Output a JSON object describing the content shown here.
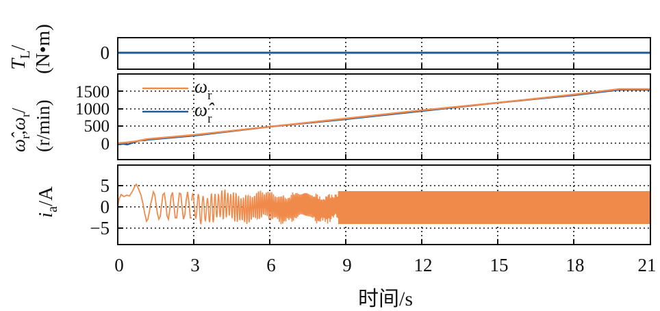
{
  "chart_data": [
    {
      "type": "line",
      "panel": "load-torque",
      "ylabel": "T_L/(N•m)",
      "yticks": [
        "0"
      ],
      "ylim": [
        -1,
        1
      ],
      "xlim": [
        0,
        21
      ],
      "grid": true,
      "series": [
        {
          "name": "T_L",
          "color": "#1f5a96",
          "x": [
            0,
            21
          ],
          "values": [
            0,
            0
          ]
        }
      ]
    },
    {
      "type": "line",
      "panel": "speed",
      "ylabel": "ω̂r,ωr/(r/min)",
      "yticks": [
        "0",
        "500",
        "1000",
        "1500"
      ],
      "ylim": [
        -150,
        2000
      ],
      "xlim": [
        0,
        21
      ],
      "grid": true,
      "legend": [
        {
          "label": "ω",
          "sub": "r",
          "color": "#f08a4b"
        },
        {
          "label": "ω̂",
          "sub": "r",
          "color": "#1f5a96"
        }
      ],
      "series": [
        {
          "name": "ωr",
          "color": "#f08a4b",
          "x": [
            0,
            0.5,
            1,
            3,
            6,
            9,
            12,
            15,
            18,
            19.8,
            21
          ],
          "values": [
            0,
            15,
            60,
            230,
            475,
            710,
            940,
            1170,
            1400,
            1550,
            1550
          ]
        },
        {
          "name": "ω̂r",
          "color": "#1f5a96",
          "x": [
            0,
            0.5,
            1,
            3,
            6,
            9,
            12,
            15,
            18,
            19.8,
            21
          ],
          "values": [
            -20,
            0,
            55,
            225,
            470,
            705,
            935,
            1165,
            1395,
            1545,
            1545
          ]
        }
      ]
    },
    {
      "type": "line",
      "panel": "phase-current",
      "ylabel": "ia/A",
      "yticks": [
        "5",
        "0",
        "−5"
      ],
      "ylim": [
        -9,
        9
      ],
      "xlim": [
        0,
        21
      ],
      "grid": true,
      "series": [
        {
          "name": "ia",
          "color": "#f08a4b",
          "description": "Start-up transient peaking near 6 A at t≈0.6 s, dipping to about −3.8 A near 1.1 s, then sinusoidal oscillation with amplitude ≈3.8 A whose frequency rises with speed; dense band from ≈8.7 s to 21 s",
          "x": [
            0,
            0.2,
            0.4,
            0.6,
            0.8,
            1.0,
            1.1,
            1.3,
            1.5,
            9,
            21
          ],
          "values": [
            3,
            4,
            3.5,
            6,
            3,
            -2,
            -3.8,
            3,
            -3.5,
            3.8,
            3.8
          ]
        }
      ]
    }
  ],
  "xaxis": {
    "label": "时间/s",
    "ticks": [
      "0",
      "3",
      "6",
      "9",
      "12",
      "15",
      "18",
      "21"
    ]
  },
  "labels": {
    "tl_main": "T",
    "tl_sub": "L",
    "tl_slash": "/",
    "tl_unit": "(N•m)",
    "w_main": "ω",
    "w_sub": "r",
    "w_sep": ",",
    "w_unit": "(r/min)",
    "ia_main": "i",
    "ia_sub": "a",
    "ia_unit": "/A"
  },
  "colors": {
    "orange": "#f08a4b",
    "blue": "#1f5a96",
    "axis": "#111111"
  }
}
